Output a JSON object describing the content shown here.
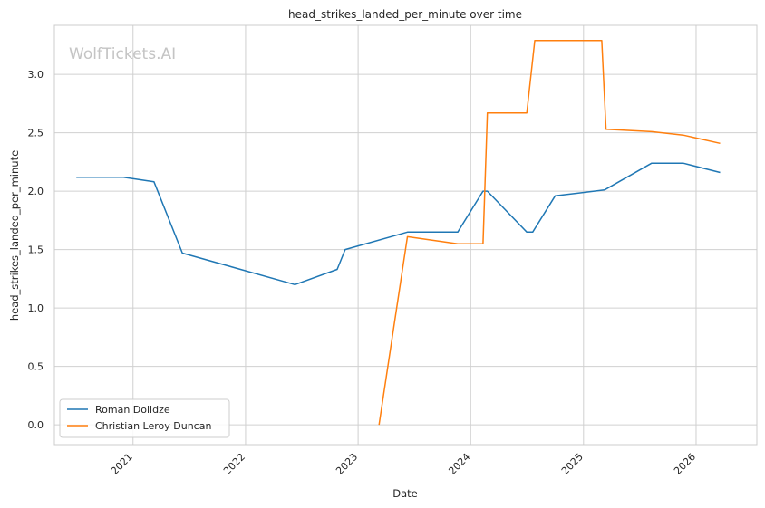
{
  "chart_data": {
    "type": "line",
    "title": "head_strikes_landed_per_minute over time",
    "xlabel": "Date",
    "ylabel": "head_strikes_landed_per_minute",
    "watermark": "WolfTickets.AI",
    "x_ticks": [
      "2021",
      "2022",
      "2023",
      "2024",
      "2025",
      "2026"
    ],
    "y_ticks": [
      "0.0",
      "0.5",
      "1.0",
      "1.5",
      "2.0",
      "2.5",
      "3.0"
    ],
    "ylim": [
      -0.17,
      3.42
    ],
    "xlim": [
      "2020-04-21",
      "2026-07-17"
    ],
    "grid": true,
    "legend_position": "lower-left",
    "series": [
      {
        "name": "Roman Dolidze",
        "color": "#1f77b4",
        "points": [
          [
            "2020-07-01",
            2.12
          ],
          [
            "2020-12-01",
            2.12
          ],
          [
            "2021-03-10",
            2.08
          ],
          [
            "2021-06-10",
            1.47
          ],
          [
            "2022-06-10",
            1.2
          ],
          [
            "2022-10-25",
            1.33
          ],
          [
            "2022-11-20",
            1.5
          ],
          [
            "2023-06-10",
            1.65
          ],
          [
            "2023-11-20",
            1.65
          ],
          [
            "2024-02-10",
            2.0
          ],
          [
            "2024-02-24",
            2.0
          ],
          [
            "2024-07-01",
            1.65
          ],
          [
            "2024-07-20",
            1.65
          ],
          [
            "2024-10-01",
            1.96
          ],
          [
            "2025-03-10",
            2.01
          ],
          [
            "2025-08-10",
            2.24
          ],
          [
            "2025-11-20",
            2.24
          ],
          [
            "2026-03-20",
            2.16
          ]
        ]
      },
      {
        "name": "Christian Leroy Duncan",
        "color": "#ff7f0e",
        "points": [
          [
            "2023-03-10",
            0.0
          ],
          [
            "2023-06-10",
            1.61
          ],
          [
            "2023-11-20",
            1.55
          ],
          [
            "2024-02-10",
            1.55
          ],
          [
            "2024-02-24",
            2.67
          ],
          [
            "2024-07-01",
            2.67
          ],
          [
            "2024-07-27",
            3.29
          ],
          [
            "2025-03-01",
            3.29
          ],
          [
            "2025-03-15",
            2.53
          ],
          [
            "2025-08-10",
            2.51
          ],
          [
            "2025-11-20",
            2.48
          ],
          [
            "2026-03-20",
            2.41
          ]
        ]
      }
    ]
  }
}
